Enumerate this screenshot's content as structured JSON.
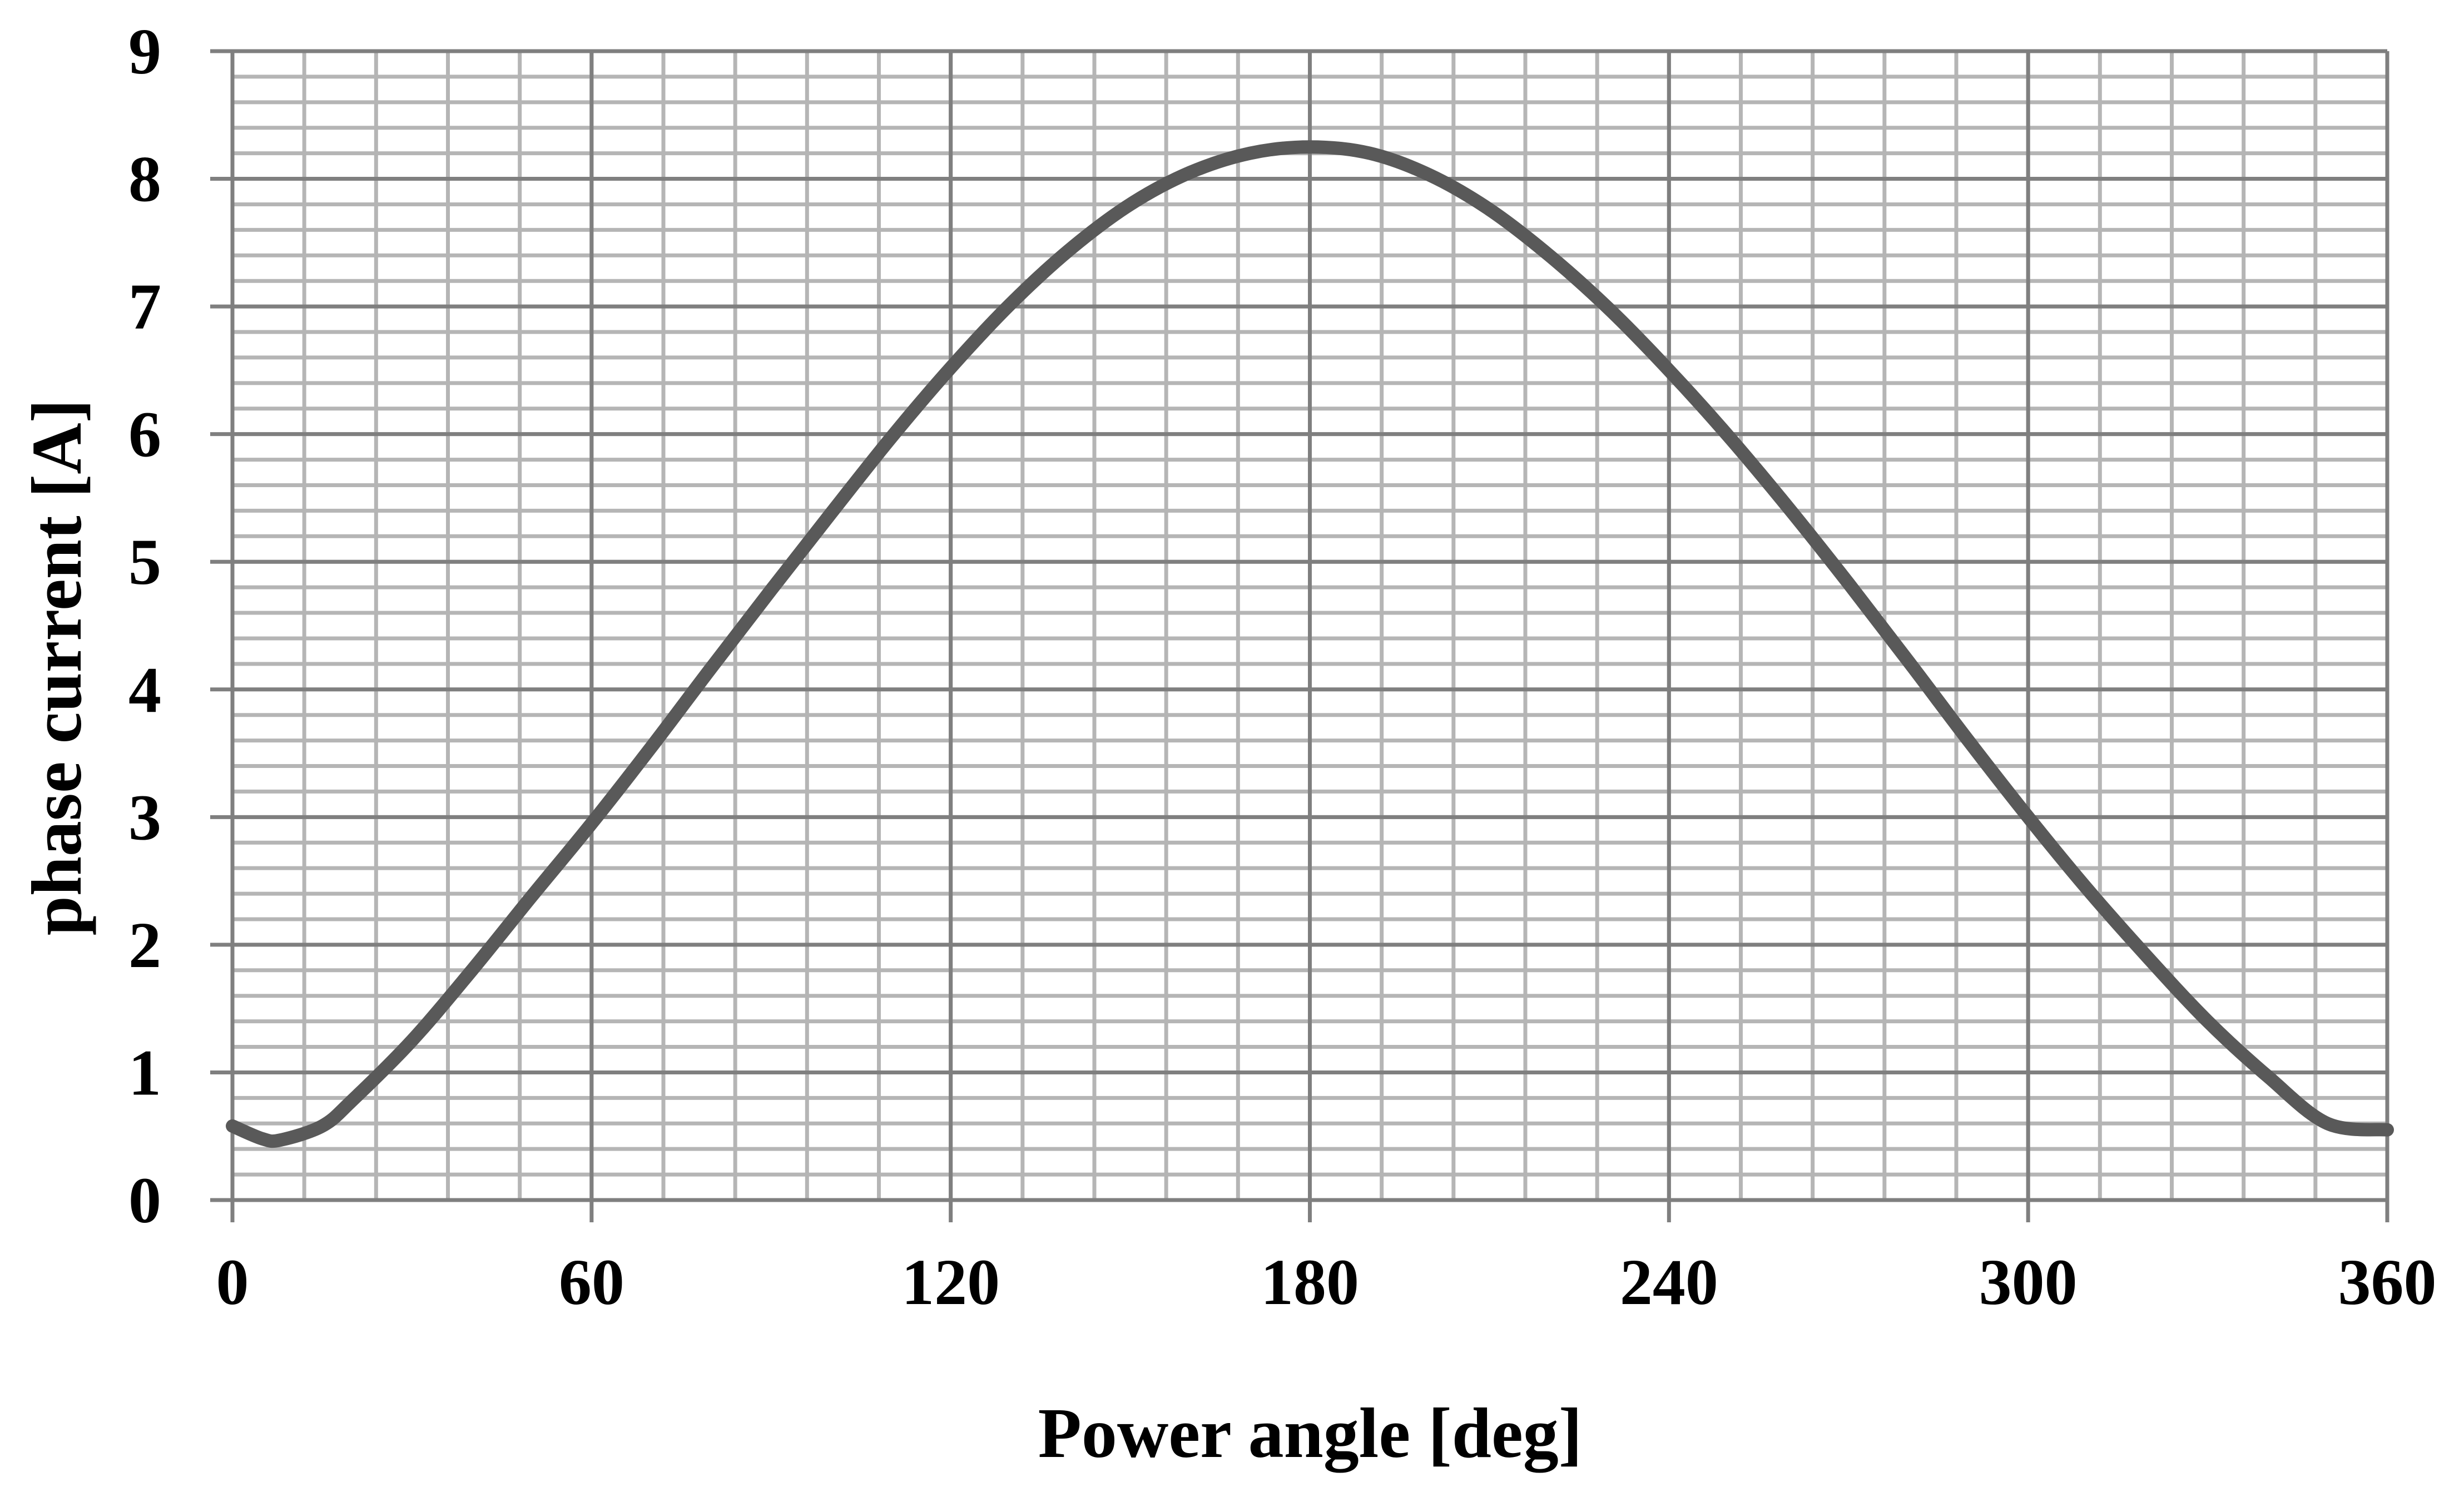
{
  "chart_data": {
    "type": "line",
    "title": "",
    "xlabel": "Power angle [deg]",
    "ylabel": "phase current [A]",
    "xlim": [
      0,
      360
    ],
    "ylim": [
      0,
      9
    ],
    "x_ticks": [
      0,
      60,
      120,
      180,
      240,
      300,
      360
    ],
    "y_ticks": [
      0,
      1,
      2,
      3,
      4,
      5,
      6,
      7,
      8,
      9
    ],
    "x_tick_labels": [
      "0",
      "60",
      "120",
      "180",
      "240",
      "300",
      "360"
    ],
    "y_tick_labels": [
      "0",
      "1",
      "2",
      "3",
      "4",
      "5",
      "6",
      "7",
      "8",
      "9"
    ],
    "grid": true,
    "grid_minor_x_step": 12,
    "grid_minor_y_step": 0.2,
    "legend": "none",
    "series": [
      {
        "color": "#595959",
        "x": [
          0,
          5,
          8,
          15,
          20,
          30,
          40,
          50,
          60,
          70,
          80,
          90,
          100,
          110,
          120,
          130,
          140,
          150,
          160,
          170,
          180,
          190,
          200,
          210,
          220,
          230,
          240,
          250,
          260,
          270,
          280,
          290,
          300,
          310,
          320,
          330,
          340,
          350,
          360
        ],
        "y": [
          0.58,
          0.48,
          0.47,
          0.58,
          0.78,
          1.25,
          1.8,
          2.38,
          2.95,
          3.55,
          4.17,
          4.78,
          5.38,
          5.97,
          6.52,
          7.02,
          7.45,
          7.8,
          8.05,
          8.2,
          8.25,
          8.2,
          8.03,
          7.76,
          7.4,
          6.98,
          6.5,
          5.98,
          5.42,
          4.83,
          4.22,
          3.6,
          3.0,
          2.43,
          1.9,
          1.4,
          0.97,
          0.6,
          0.55
        ]
      }
    ]
  }
}
